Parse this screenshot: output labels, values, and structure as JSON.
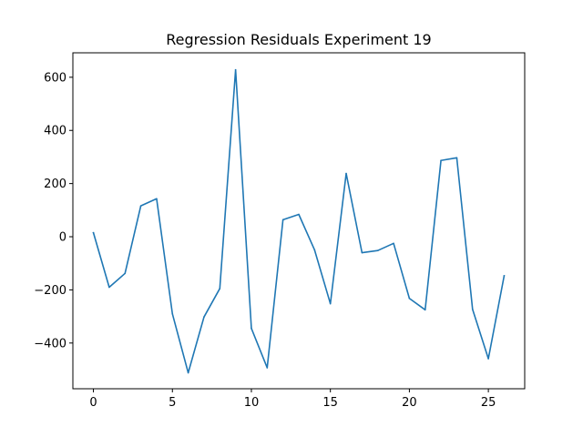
{
  "chart_data": {
    "type": "line",
    "title": "Regression Residuals Experiment 19",
    "xlabel": "",
    "ylabel": "",
    "xlim": [
      -1.3,
      27.3
    ],
    "ylim": [
      -572,
      692
    ],
    "xticks": [
      0,
      5,
      10,
      15,
      20,
      25
    ],
    "yticks": [
      -400,
      -200,
      0,
      200,
      400,
      600
    ],
    "grid": false,
    "series": [
      {
        "color": "#1f77b4",
        "x": [
          0,
          1,
          2,
          3,
          4,
          5,
          6,
          7,
          8,
          9,
          10,
          11,
          12,
          13,
          14,
          15,
          16,
          17,
          18,
          19,
          20,
          21,
          22,
          23,
          24,
          25,
          26
        ],
        "y": [
          15,
          -190,
          -138,
          116,
          143,
          -290,
          -512,
          -302,
          -195,
          628,
          -345,
          -493,
          64,
          84,
          -50,
          -252,
          238,
          -60,
          -52,
          -25,
          -232,
          -275,
          287,
          297,
          -273,
          -459,
          -147
        ]
      }
    ]
  }
}
